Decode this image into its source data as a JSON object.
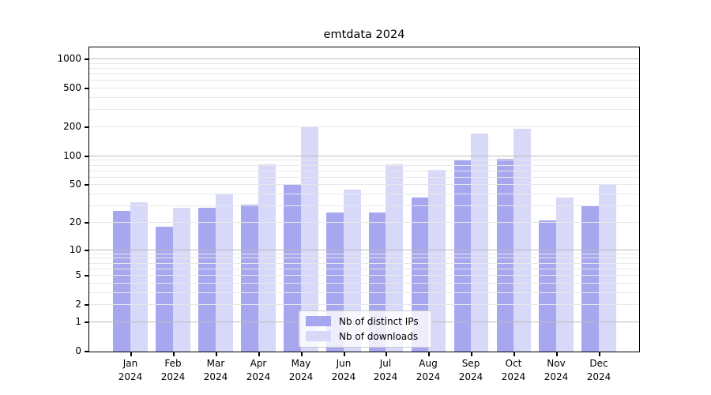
{
  "title": "emtdata 2024",
  "legend": {
    "entries": [
      "Nb of distinct IPs",
      "Nb of downloads"
    ]
  },
  "chart_data": {
    "type": "bar",
    "title": "emtdata 2024",
    "categories": [
      "Jan 2024",
      "Feb 2024",
      "Mar 2024",
      "Apr 2024",
      "May 2024",
      "Jun 2024",
      "Jul 2024",
      "Aug 2024",
      "Sep 2024",
      "Oct 2024",
      "Nov 2024",
      "Dec 2024"
    ],
    "series": [
      {
        "name": "Nb of distinct IPs",
        "color": "#a7a7f0",
        "values": [
          27,
          18,
          29,
          31,
          50,
          26,
          26,
          37,
          92,
          94,
          21,
          30
        ]
      },
      {
        "name": "Nb of downloads",
        "color": "#d8d8f8",
        "values": [
          33,
          29,
          41,
          82,
          200,
          45,
          82,
          73,
          172,
          193,
          37,
          50
        ]
      }
    ],
    "xlabel": "",
    "ylabel": "",
    "yscale": "log10(value+1)",
    "ylim": [
      0,
      1300
    ],
    "y_ticks": [
      0,
      1,
      2,
      5,
      10,
      20,
      50,
      100,
      200,
      500,
      1000
    ],
    "y_decade_gridlines": [
      1,
      10,
      100,
      1000
    ],
    "y_minor_gridlines": [
      3,
      4,
      6,
      7,
      8,
      9,
      30,
      40,
      60,
      70,
      80,
      90,
      300,
      400,
      600,
      700,
      800,
      900
    ],
    "grid": true,
    "legend_position": "lower center",
    "colors": {
      "major_grid": "#bcbcbc",
      "minor_grid": "#e8e8e8",
      "spine": "#000000",
      "background": "#ffffff",
      "text": "#000000"
    }
  }
}
